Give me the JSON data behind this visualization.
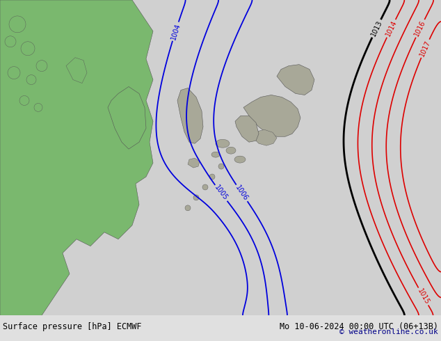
{
  "title_left": "Surface pressure [hPa] ECMWF",
  "title_right": "Mo 10-06-2024 00:00 UTC (06+13B)",
  "copyright": "© weatheronline.co.uk",
  "bg_color": "#d0d0d0",
  "land_green": "#7ab86e",
  "land_gray": "#a8a898",
  "blue_color": "#0000dd",
  "red_color": "#dd0000",
  "black_color": "#000000",
  "figsize": [
    6.34,
    4.9
  ],
  "dpi": 100,
  "bottom_color": "#e0e0e0",
  "text_color": "#000000"
}
